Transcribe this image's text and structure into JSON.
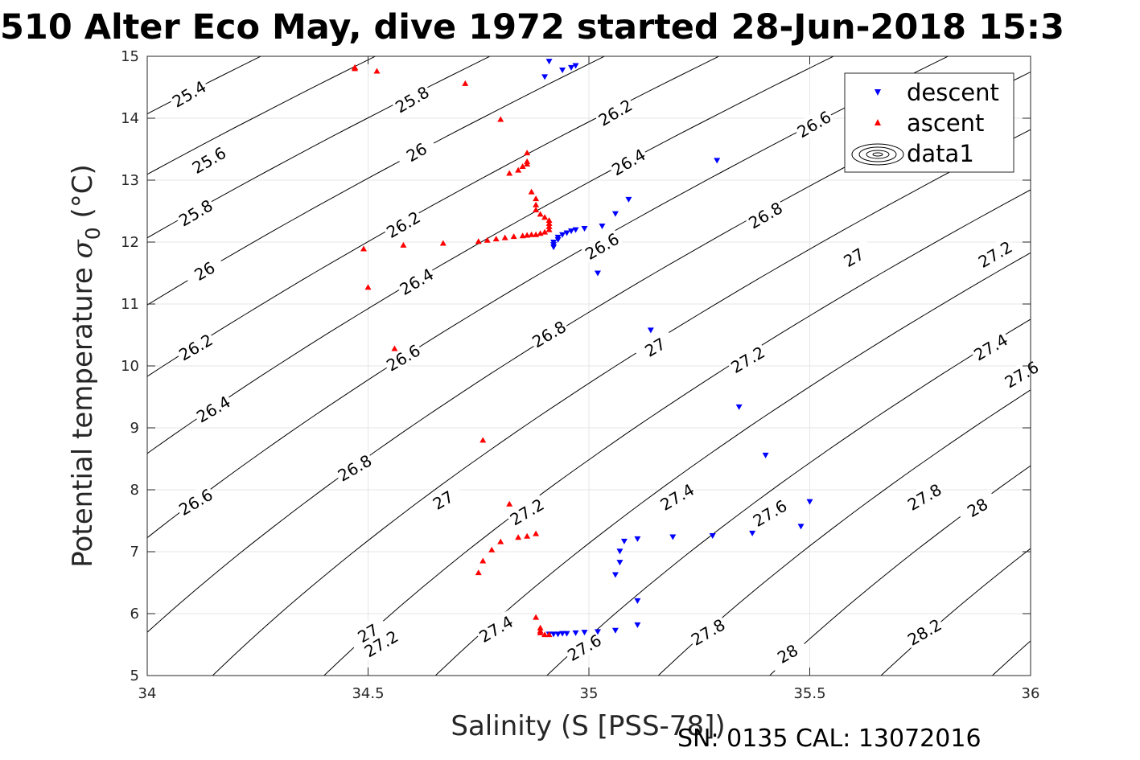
{
  "title": "510 Alter Eco May, dive 1972 started 28-Jun-2018 15:3",
  "footer": "SN: 0135  CAL: 13072016",
  "chart_data": {
    "type": "scatter",
    "xlabel": "Salinity (S [PSS-78])",
    "ylabel_main": "Potential temperature ",
    "ylabel_sym": "σ",
    "ylabel_sub": "0",
    "ylabel_unit": " (°C)",
    "xlim": [
      34,
      36
    ],
    "ylim": [
      5,
      15
    ],
    "x_ticks": [
      34,
      34.5,
      35,
      35.5,
      36
    ],
    "x_tick_labels": [
      "34",
      "34.5",
      "35",
      "35.5",
      "36"
    ],
    "y_ticks": [
      5,
      6,
      7,
      8,
      9,
      10,
      11,
      12,
      13,
      14,
      15
    ],
    "y_tick_labels": [
      "5",
      "6",
      "7",
      "8",
      "9",
      "10",
      "11",
      "12",
      "13",
      "14",
      "15"
    ],
    "grid": true,
    "legend_position": "top-right",
    "legend": [
      "descent",
      "ascent",
      "data1"
    ],
    "contour_levels": [
      25.2,
      25.4,
      25.6,
      25.8,
      26,
      26.2,
      26.4,
      26.6,
      26.8,
      27,
      27.2,
      27.4,
      27.6,
      27.8,
      28,
      28.2,
      28.4
    ],
    "contour_labels": [
      {
        "text": "25.4",
        "x": 34.095,
        "y": 14.39
      },
      {
        "text": "25.6",
        "x": 34.14,
        "y": 13.32
      },
      {
        "text": "25.8",
        "x": 34.11,
        "y": 12.47
      },
      {
        "text": "26",
        "x": 34.13,
        "y": 11.53
      },
      {
        "text": "26.2",
        "x": 34.11,
        "y": 10.3
      },
      {
        "text": "26.4",
        "x": 34.15,
        "y": 9.3
      },
      {
        "text": "26.6",
        "x": 34.11,
        "y": 7.8
      },
      {
        "text": "27",
        "x": 34.5,
        "y": 5.68
      },
      {
        "text": "25.8",
        "x": 34.6,
        "y": 14.3
      },
      {
        "text": "26",
        "x": 34.61,
        "y": 13.45
      },
      {
        "text": "26.2",
        "x": 34.58,
        "y": 12.28
      },
      {
        "text": "26.4",
        "x": 34.61,
        "y": 11.36
      },
      {
        "text": "26.6",
        "x": 34.58,
        "y": 10.13
      },
      {
        "text": "26.8",
        "x": 34.47,
        "y": 8.35
      },
      {
        "text": "27",
        "x": 34.67,
        "y": 7.83
      },
      {
        "text": "27.2",
        "x": 34.53,
        "y": 5.51
      },
      {
        "text": "26.2",
        "x": 35.06,
        "y": 14.09
      },
      {
        "text": "26.4",
        "x": 35.09,
        "y": 13.29
      },
      {
        "text": "26.6",
        "x": 35.03,
        "y": 11.93
      },
      {
        "text": "26.8",
        "x": 34.91,
        "y": 10.51
      },
      {
        "text": "27",
        "x": 35.15,
        "y": 10.3
      },
      {
        "text": "27.2",
        "x": 34.86,
        "y": 7.64
      },
      {
        "text": "27.4",
        "x": 34.79,
        "y": 5.75
      },
      {
        "text": "27.6",
        "x": 34.99,
        "y": 5.45
      },
      {
        "text": "26.6",
        "x": 35.51,
        "y": 13.9
      },
      {
        "text": "26.8",
        "x": 35.4,
        "y": 12.43
      },
      {
        "text": "27",
        "x": 35.6,
        "y": 11.75
      },
      {
        "text": "27.2",
        "x": 35.36,
        "y": 10.1
      },
      {
        "text": "27.4",
        "x": 35.2,
        "y": 7.88
      },
      {
        "text": "27.6",
        "x": 35.41,
        "y": 7.62
      },
      {
        "text": "27.8",
        "x": 35.27,
        "y": 5.7
      },
      {
        "text": "28",
        "x": 35.45,
        "y": 5.35
      },
      {
        "text": "27.2",
        "x": 35.92,
        "y": 11.8
      },
      {
        "text": "27.4",
        "x": 35.91,
        "y": 10.3
      },
      {
        "text": "27.6",
        "x": 35.98,
        "y": 9.86
      },
      {
        "text": "27.8",
        "x": 35.76,
        "y": 7.88
      },
      {
        "text": "28",
        "x": 35.88,
        "y": 7.71
      },
      {
        "text": "28.2",
        "x": 35.76,
        "y": 5.7
      }
    ],
    "series": [
      {
        "name": "descent",
        "color": "#0000ff",
        "marker": "triangle-down",
        "points": [
          [
            34.91,
            14.92
          ],
          [
            34.94,
            14.78
          ],
          [
            34.96,
            14.82
          ],
          [
            34.97,
            14.85
          ],
          [
            34.9,
            14.67
          ],
          [
            35.29,
            13.32
          ],
          [
            35.09,
            12.69
          ],
          [
            35.06,
            12.46
          ],
          [
            35.03,
            12.26
          ],
          [
            34.99,
            12.22
          ],
          [
            34.97,
            12.2
          ],
          [
            34.96,
            12.18
          ],
          [
            34.95,
            12.15
          ],
          [
            34.94,
            12.12
          ],
          [
            34.93,
            12.08
          ],
          [
            34.93,
            12.04
          ],
          [
            34.92,
            12.0
          ],
          [
            34.92,
            11.96
          ],
          [
            34.92,
            11.92
          ],
          [
            35.02,
            11.5
          ],
          [
            35.14,
            10.58
          ],
          [
            35.34,
            9.34
          ],
          [
            35.4,
            8.56
          ],
          [
            35.5,
            7.81
          ],
          [
            35.48,
            7.41
          ],
          [
            35.37,
            7.3
          ],
          [
            35.28,
            7.26
          ],
          [
            35.19,
            7.24
          ],
          [
            35.11,
            7.21
          ],
          [
            35.08,
            7.17
          ],
          [
            35.07,
            7.01
          ],
          [
            35.07,
            6.83
          ],
          [
            35.06,
            6.63
          ],
          [
            35.11,
            6.21
          ],
          [
            35.11,
            5.82
          ],
          [
            35.06,
            5.73
          ],
          [
            35.02,
            5.71
          ],
          [
            34.99,
            5.7
          ],
          [
            34.97,
            5.69
          ],
          [
            34.95,
            5.68
          ],
          [
            34.94,
            5.68
          ],
          [
            34.93,
            5.67
          ],
          [
            34.92,
            5.67
          ],
          [
            34.91,
            5.67
          ]
        ]
      },
      {
        "name": "ascent",
        "color": "#ff0000",
        "marker": "triangle-up",
        "points": [
          [
            34.47,
            14.82
          ],
          [
            34.47,
            14.8
          ],
          [
            34.52,
            14.76
          ],
          [
            34.72,
            14.56
          ],
          [
            34.8,
            13.98
          ],
          [
            34.86,
            13.44
          ],
          [
            34.86,
            13.3
          ],
          [
            34.86,
            13.26
          ],
          [
            34.85,
            13.22
          ],
          [
            34.84,
            13.16
          ],
          [
            34.82,
            13.11
          ],
          [
            34.87,
            12.81
          ],
          [
            34.88,
            12.7
          ],
          [
            34.88,
            12.6
          ],
          [
            34.88,
            12.52
          ],
          [
            34.89,
            12.45
          ],
          [
            34.9,
            12.4
          ],
          [
            34.91,
            12.35
          ],
          [
            34.91,
            12.3
          ],
          [
            34.91,
            12.25
          ],
          [
            34.91,
            12.2
          ],
          [
            34.9,
            12.16
          ],
          [
            34.89,
            12.14
          ],
          [
            34.88,
            12.12
          ],
          [
            34.87,
            12.12
          ],
          [
            34.86,
            12.11
          ],
          [
            34.85,
            12.1
          ],
          [
            34.83,
            12.09
          ],
          [
            34.81,
            12.07
          ],
          [
            34.79,
            12.05
          ],
          [
            34.77,
            12.03
          ],
          [
            34.75,
            12.01
          ],
          [
            34.67,
            11.98
          ],
          [
            34.58,
            11.95
          ],
          [
            34.49,
            11.89
          ],
          [
            34.5,
            11.27
          ],
          [
            34.56,
            10.28
          ],
          [
            34.76,
            8.8
          ],
          [
            34.82,
            7.77
          ],
          [
            34.88,
            7.29
          ],
          [
            34.86,
            7.25
          ],
          [
            34.84,
            7.23
          ],
          [
            34.8,
            7.16
          ],
          [
            34.78,
            7.03
          ],
          [
            34.76,
            6.85
          ],
          [
            34.75,
            6.66
          ],
          [
            34.88,
            5.94
          ],
          [
            34.89,
            5.77
          ],
          [
            34.89,
            5.72
          ],
          [
            34.89,
            5.69
          ],
          [
            34.9,
            5.66
          ],
          [
            34.91,
            5.66
          ]
        ]
      }
    ]
  }
}
